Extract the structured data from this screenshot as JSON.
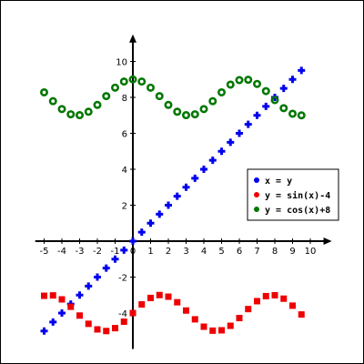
{
  "chart_data": {
    "type": "scatter",
    "title": "",
    "xlabel": "",
    "ylabel": "",
    "xlim": [
      -5.5,
      10.9
    ],
    "ylim": [
      -6.0,
      11.2
    ],
    "grid": false,
    "legend_position": "right",
    "x_ticks": [
      -5,
      -4,
      -3,
      -2,
      -1,
      0,
      1,
      2,
      3,
      4,
      5,
      6,
      7,
      8,
      9,
      10
    ],
    "x_tick_labels": [
      "-5",
      "-4",
      "-3",
      "-2",
      "-1",
      "0",
      "1",
      "2",
      "3",
      "4",
      "5",
      "6",
      "7",
      "8",
      "9",
      "10"
    ],
    "y_ticks": [
      -4,
      -2,
      2,
      4,
      6,
      8,
      10
    ],
    "y_tick_labels": [
      "-4",
      "-2",
      "2",
      "4",
      "6",
      "8",
      "10"
    ],
    "x": [
      -5.0,
      -4.5,
      -4.0,
      -3.5,
      -3.0,
      -2.5,
      -2.0,
      -1.5,
      -1.0,
      -0.5,
      0.0,
      0.5,
      1.0,
      1.5,
      2.0,
      2.5,
      3.0,
      3.5,
      4.0,
      4.5,
      5.0,
      5.5,
      6.0,
      6.5,
      7.0,
      7.5,
      8.0,
      8.5,
      9.0,
      9.5
    ],
    "series": [
      {
        "name": "x = y",
        "color": "#0000ee",
        "marker": "plus",
        "values": [
          -5.0,
          -4.5,
          -4.0,
          -3.5,
          -3.0,
          -2.5,
          -2.0,
          -1.5,
          -1.0,
          -0.5,
          0.0,
          0.5,
          1.0,
          1.5,
          2.0,
          2.5,
          3.0,
          3.5,
          4.0,
          4.5,
          5.0,
          5.5,
          6.0,
          6.5,
          7.0,
          7.5,
          8.0,
          8.5,
          9.0,
          9.5
        ]
      },
      {
        "name": "y = sin(x)-4",
        "color": "#ee0000",
        "marker": "square",
        "values": [
          -3.04,
          -3.02,
          -3.24,
          -3.65,
          -4.14,
          -4.6,
          -4.91,
          -5.0,
          -4.84,
          -4.48,
          -4.0,
          -3.52,
          -3.16,
          -3.0,
          -3.09,
          -3.4,
          -3.86,
          -4.35,
          -4.76,
          -4.98,
          -4.96,
          -4.71,
          -4.28,
          -3.78,
          -3.34,
          -3.06,
          -3.01,
          -3.2,
          -3.59,
          -4.08
        ]
      },
      {
        "name": "y = cos(x)+8",
        "color": "#007700",
        "marker": "ring",
        "values": [
          8.28,
          7.79,
          7.35,
          7.06,
          7.01,
          7.2,
          7.58,
          8.07,
          8.54,
          8.88,
          9.0,
          8.88,
          8.54,
          8.07,
          7.58,
          7.2,
          7.01,
          7.06,
          7.35,
          7.79,
          8.28,
          8.71,
          8.96,
          8.98,
          8.75,
          8.35,
          7.85,
          7.4,
          7.09,
          7.0
        ]
      }
    ],
    "legend": [
      {
        "label": "x = y",
        "color": "#0000ee"
      },
      {
        "label": "y = sin(x)-4",
        "color": "#ee0000"
      },
      {
        "label": "y = cos(x)+8",
        "color": "#007700"
      }
    ]
  }
}
